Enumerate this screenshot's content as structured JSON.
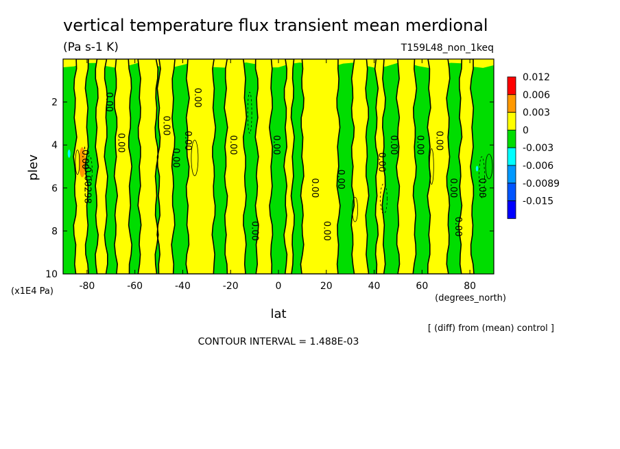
{
  "chart_data": {
    "type": "heatmap",
    "title": "vertical temperature flux transient mean merdional",
    "units": "(Pa s-1 K)",
    "run_label": "T159L48_non_1keq",
    "xlabel": "lat",
    "x_unit_label": "(degrees_north)",
    "ylabel": "plev",
    "y_unit_label": "(x1E4 Pa)",
    "xlim": [
      -90,
      90
    ],
    "ylim": [
      10,
      0
    ],
    "x_ticks": [
      -80,
      -60,
      -40,
      -20,
      0,
      20,
      40,
      60,
      80
    ],
    "x_tick_labels": [
      "-80",
      "-60",
      "-40",
      "-20",
      "0",
      "20",
      "40",
      "60",
      "80"
    ],
    "y_ticks": [
      2,
      4,
      6,
      8,
      10
    ],
    "y_tick_labels": [
      "2",
      "4",
      "6",
      "8",
      "10"
    ],
    "contour_interval_text": "CONTOUR INTERVAL = 1.488E-03",
    "diff_note": "[ (diff) from (mean) control ]",
    "colorbar": {
      "labels": [
        "0.012",
        "0.006",
        "0.003",
        "0",
        "-0.003",
        "-0.006",
        "-0.0089",
        "-0.015"
      ],
      "colors": [
        "#ff0000",
        "#ff9900",
        "#ffff00",
        "#00dd00",
        "#00ffff",
        "#0099ff",
        "#0055ff",
        "#0000ff"
      ]
    },
    "contour_labels": [
      {
        "text": "0.00",
        "lat": -72,
        "plev": 2.0
      },
      {
        "text": "0.00",
        "lat": -67,
        "plev": 3.9
      },
      {
        "text": "0.00",
        "lat": -48,
        "plev": 3.1
      },
      {
        "text": "0.00",
        "lat": -44,
        "plev": 4.6
      },
      {
        "text": "0.00",
        "lat": -35,
        "plev": 1.8
      },
      {
        "text": "0.00",
        "lat": -39,
        "plev": 3.8
      },
      {
        "text": "0.00",
        "lat": -20,
        "plev": 4.0
      },
      {
        "text": "0.00",
        "lat": -11,
        "plev": 8.0
      },
      {
        "text": "0.00",
        "lat": -2,
        "plev": 4.0
      },
      {
        "text": "0.00",
        "lat": 14,
        "plev": 6.0
      },
      {
        "text": "0.00",
        "lat": 19,
        "plev": 8.0
      },
      {
        "text": "0.00",
        "lat": 25,
        "plev": 5.6
      },
      {
        "text": "0.00",
        "lat": 42,
        "plev": 4.8
      },
      {
        "text": "0.00",
        "lat": 47,
        "plev": 4.0
      },
      {
        "text": "0.00",
        "lat": 58,
        "plev": 4.0
      },
      {
        "text": "0.00",
        "lat": 66,
        "plev": 3.8
      },
      {
        "text": "0.00",
        "lat": 72,
        "plev": 6.0
      },
      {
        "text": "0.00",
        "lat": 74,
        "plev": 7.8
      },
      {
        "text": "0.00",
        "lat": 84,
        "plev": 6.0
      },
      {
        "text": "-0.00298",
        "lat": -81,
        "plev": 5.8
      },
      {
        "text": "-0.00",
        "lat": -82,
        "plev": 4.6
      }
    ]
  }
}
